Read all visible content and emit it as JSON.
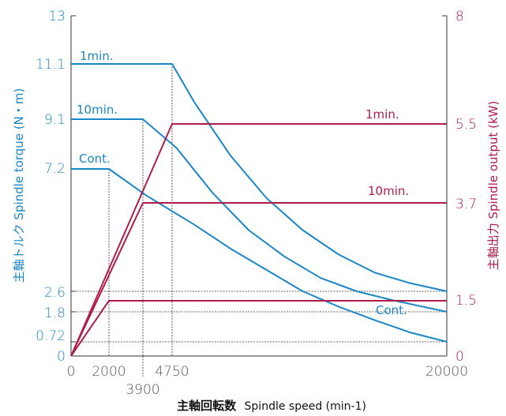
{
  "chart_data": {
    "type": "line",
    "xlabel": "主軸回転数 Spindle speed (min-1)",
    "xlabel_parts": {
      "ja": "主軸回転数",
      "en": "Spindle speed (min-1)"
    },
    "ylabel_left": "主軸トルク Spindle torque (N・m)",
    "ylabel_right": "主軸出力 Spindle output (kW)",
    "xlim": [
      0,
      20000
    ],
    "ylim_left": [
      0,
      13
    ],
    "ylim_right": [
      0,
      8
    ],
    "x_ticks": [
      "0",
      "2000",
      "3900",
      "4750",
      "20000"
    ],
    "x_tick_values": [
      0,
      2000,
      3900,
      4750,
      20000
    ],
    "y_ticks_left": [
      "13",
      "11.1",
      "9.1",
      "7.2",
      "2.6",
      "1.8",
      "0.72",
      "0"
    ],
    "y_tick_values_left": [
      13,
      11.1,
      9.1,
      7.2,
      2.6,
      1.8,
      0.72,
      0
    ],
    "y_ticks_right": [
      "8",
      "5.5",
      "3.7",
      "1.5",
      "0"
    ],
    "y_tick_values_right": [
      8,
      5.5,
      3.7,
      1.5,
      0
    ],
    "grid": false,
    "colors": {
      "torque": "#1a86c7",
      "power": "#b01c4a",
      "guide": "#333333"
    },
    "series": [
      {
        "name": "1min.",
        "axis": "left",
        "x": [
          0,
          4750,
          6000,
          8000,
          10000,
          12000,
          14000,
          16000,
          18000,
          20000
        ],
        "y": [
          11.1,
          11.1,
          9.7,
          7.7,
          6.1,
          4.9,
          3.98,
          3.3,
          2.9,
          2.6
        ]
      },
      {
        "name": "10min.",
        "axis": "left",
        "x": [
          0,
          3900,
          5000,
          7000,
          9000,
          11000,
          13000,
          15000,
          17000,
          20000
        ],
        "y": [
          9.1,
          9.1,
          8.0,
          6.3,
          4.9,
          3.9,
          3.1,
          2.6,
          2.25,
          1.8
        ]
      },
      {
        "name": "Cont.",
        "axis": "left",
        "x": [
          0,
          2000,
          4000,
          6000,
          8000,
          10000,
          12000,
          14000,
          16000,
          18000,
          20000
        ],
        "y": [
          7.2,
          7.2,
          6.2,
          5.1,
          4.2,
          3.4,
          2.6,
          2.0,
          1.5,
          1.05,
          0.72
        ]
      },
      {
        "name": "1min.",
        "axis": "right",
        "x": [
          0,
          4750,
          20000
        ],
        "y": [
          0,
          5.5,
          5.5
        ]
      },
      {
        "name": "10min.",
        "axis": "right",
        "x": [
          0,
          3900,
          20000
        ],
        "y": [
          0,
          3.7,
          3.7
        ]
      },
      {
        "name": "Cont.",
        "axis": "right",
        "x": [
          0,
          2000,
          20000
        ],
        "y": [
          0,
          1.5,
          1.5
        ]
      }
    ],
    "series_labels": {
      "torque_1min": "1min.",
      "torque_10min": "10min.",
      "torque_cont": "Cont.",
      "power_1min": "1min.",
      "power_10min": "10min.",
      "power_cont": "Cont."
    }
  }
}
